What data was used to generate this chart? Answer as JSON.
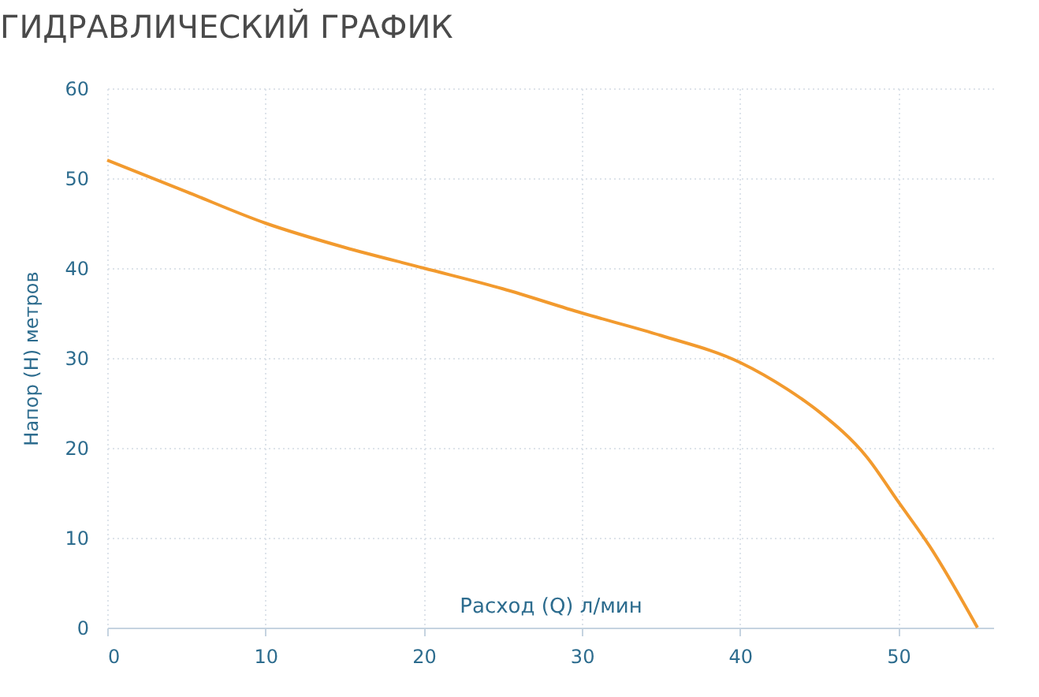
{
  "chart_data": {
    "type": "line",
    "title": "ГИДРАВЛИЧЕСКИЙ ГРАФИК",
    "xlabel": "Расход (Q) л/мин",
    "ylabel": "Напор (H) метров",
    "x": [
      0,
      5,
      10,
      15,
      20,
      25,
      30,
      35,
      40,
      43,
      45,
      48,
      50,
      52,
      55
    ],
    "series": [
      {
        "color": "#f29a2e",
        "values": [
          52,
          48.5,
          45,
          42.3,
          40,
          37.7,
          35,
          32.5,
          29.5,
          26.5,
          24,
          19,
          14,
          9,
          0
        ]
      }
    ],
    "xlim": [
      0,
      56
    ],
    "xticks": [
      0,
      10,
      20,
      30,
      40,
      50
    ],
    "ylim": [
      0,
      60
    ],
    "yticks": [
      0,
      10,
      20,
      30,
      40,
      50,
      60
    ],
    "grid": true
  }
}
